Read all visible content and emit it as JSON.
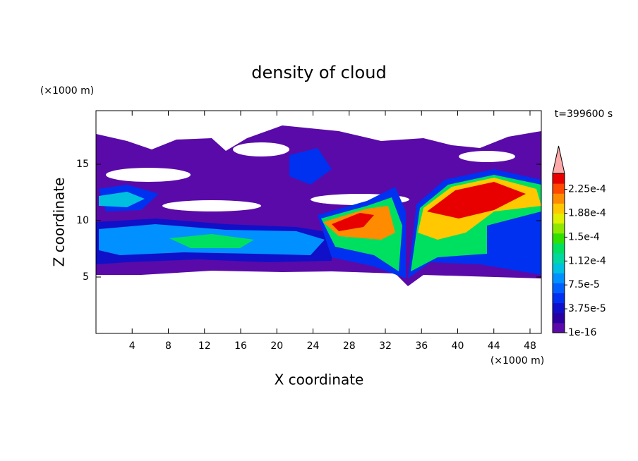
{
  "chart_data": {
    "type": "contour",
    "title": "density of cloud",
    "x_label": "X coordinate",
    "y_label": "Z coordinate",
    "x_unit": "(×1000 m)",
    "y_unit": "(×1000 m)",
    "time_label": "t=399600 s",
    "xlim": [
      0,
      49.25
    ],
    "xticks": [
      4,
      8,
      12,
      16,
      20,
      24,
      28,
      32,
      36,
      40,
      44,
      48
    ],
    "ylim": [
      0,
      19.75
    ],
    "yticks": [
      5,
      10,
      15
    ],
    "colorbar": {
      "clim": [
        0,
        0.00025
      ],
      "colors": [
        "#5a0aa8",
        "#2a00a0",
        "#1010c8",
        "#0030f0",
        "#0060ff",
        "#0090ff",
        "#00c0e0",
        "#00d8a0",
        "#00e060",
        "#30e000",
        "#90e800",
        "#e0f000",
        "#ffc800",
        "#ff8c00",
        "#ff4800",
        "#e80000"
      ],
      "over_color": "#ffaaaa",
      "ticks": [
        {
          "value": 1e-16,
          "label": "1e-16"
        },
        {
          "value": 3.75e-05,
          "label": "3.75e-5"
        },
        {
          "value": 7.5e-05,
          "label": "7.5e-5"
        },
        {
          "value": 0.0001125,
          "label": "1.12e-4"
        },
        {
          "value": 0.00015,
          "label": "1.5e-4"
        },
        {
          "value": 0.0001875,
          "label": "1.88e-4"
        },
        {
          "value": 0.000225,
          "label": "2.25e-4"
        }
      ]
    }
  }
}
